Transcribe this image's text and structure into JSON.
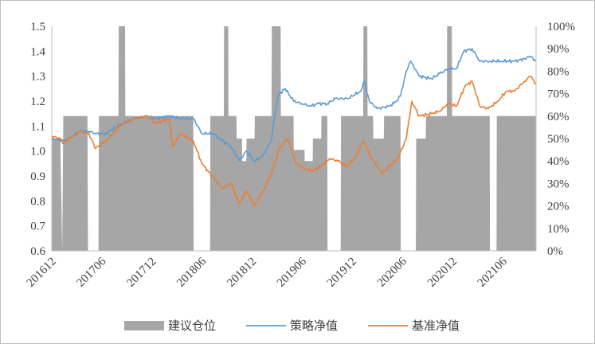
{
  "chart_data": {
    "type": "line",
    "title": "",
    "xlabel": "",
    "ylabel": "",
    "grid": false,
    "legend_position": "bottom",
    "x_tick_labels": [
      "201612",
      "201706",
      "201712",
      "201806",
      "201812",
      "201906",
      "201912",
      "202006",
      "202012",
      "202106"
    ],
    "y_left": {
      "ylim": [
        0.6,
        1.5
      ],
      "ticks": [
        "0.6",
        "0.7",
        "0.8",
        "0.9",
        "1.0",
        "1.1",
        "1.2",
        "1.3",
        "1.4",
        "1.5"
      ]
    },
    "y_right": {
      "ylim": [
        0,
        100
      ],
      "ticks": [
        "0%",
        "10%",
        "20%",
        "30%",
        "40%",
        "50%",
        "60%",
        "70%",
        "80%",
        "90%",
        "100%"
      ]
    },
    "x_range": [
      "2016-12",
      "2021-10"
    ],
    "series": [
      {
        "name": "建议仓位",
        "kind": "area",
        "axis": "right",
        "color": "#a6a6a6",
        "points": [
          [
            "2016-12-01",
            50
          ],
          [
            "2017-01-01",
            50
          ],
          [
            "2017-01-08",
            0
          ],
          [
            "2017-01-12",
            60
          ],
          [
            "2017-04-10",
            60
          ],
          [
            "2017-04-12",
            0
          ],
          [
            "2017-05-20",
            0
          ],
          [
            "2017-05-22",
            60
          ],
          [
            "2017-08-01",
            60
          ],
          [
            "2017-08-02",
            100
          ],
          [
            "2017-08-25",
            100
          ],
          [
            "2017-08-26",
            60
          ],
          [
            "2018-05-01",
            60
          ],
          [
            "2018-05-02",
            0
          ],
          [
            "2018-07-01",
            0
          ],
          [
            "2018-07-02",
            60
          ],
          [
            "2018-08-20",
            60
          ],
          [
            "2018-08-21",
            100
          ],
          [
            "2018-09-05",
            100
          ],
          [
            "2018-09-06",
            60
          ],
          [
            "2018-10-05",
            60
          ],
          [
            "2018-10-06",
            50
          ],
          [
            "2018-10-25",
            50
          ],
          [
            "2018-10-26",
            40
          ],
          [
            "2018-11-10",
            40
          ],
          [
            "2018-11-11",
            50
          ],
          [
            "2018-12-10",
            50
          ],
          [
            "2018-12-11",
            60
          ],
          [
            "2019-02-10",
            60
          ],
          [
            "2019-02-11",
            100
          ],
          [
            "2019-03-15",
            100
          ],
          [
            "2019-03-16",
            60
          ],
          [
            "2019-05-01",
            60
          ],
          [
            "2019-05-02",
            45
          ],
          [
            "2019-06-10",
            45
          ],
          [
            "2019-06-11",
            40
          ],
          [
            "2019-07-10",
            40
          ],
          [
            "2019-07-11",
            50
          ],
          [
            "2019-08-10",
            50
          ],
          [
            "2019-08-11",
            60
          ],
          [
            "2019-09-01",
            60
          ],
          [
            "2019-09-02",
            0
          ],
          [
            "2019-10-20",
            0
          ],
          [
            "2019-10-21",
            60
          ],
          [
            "2020-01-10",
            60
          ],
          [
            "2020-01-11",
            100
          ],
          [
            "2020-01-25",
            100
          ],
          [
            "2020-01-26",
            60
          ],
          [
            "2020-02-15",
            60
          ],
          [
            "2020-02-16",
            50
          ],
          [
            "2020-03-25",
            50
          ],
          [
            "2020-03-26",
            60
          ],
          [
            "2020-05-25",
            60
          ],
          [
            "2020-05-26",
            0
          ],
          [
            "2020-07-20",
            0
          ],
          [
            "2020-07-21",
            50
          ],
          [
            "2020-08-25",
            50
          ],
          [
            "2020-08-26",
            60
          ],
          [
            "2020-11-10",
            60
          ],
          [
            "2020-11-11",
            100
          ],
          [
            "2020-11-28",
            100
          ],
          [
            "2020-11-29",
            60
          ],
          [
            "2021-04-15",
            60
          ],
          [
            "2021-04-16",
            0
          ],
          [
            "2021-05-10",
            0
          ],
          [
            "2021-05-11",
            60
          ],
          [
            "2021-10-01",
            60
          ]
        ]
      },
      {
        "name": "策略净值",
        "kind": "line",
        "axis": "left",
        "color": "#5b9bd5",
        "points": [
          [
            "2016-12-01",
            1.05
          ],
          [
            "2017-01-15",
            1.04
          ],
          [
            "2017-02-15",
            1.06
          ],
          [
            "2017-03-15",
            1.08
          ],
          [
            "2017-04-15",
            1.08
          ],
          [
            "2017-05-10",
            1.07
          ],
          [
            "2017-06-15",
            1.07
          ],
          [
            "2017-08-15",
            1.11
          ],
          [
            "2017-10-01",
            1.13
          ],
          [
            "2017-11-15",
            1.14
          ],
          [
            "2017-12-15",
            1.13
          ],
          [
            "2018-02-01",
            1.14
          ],
          [
            "2018-03-15",
            1.13
          ],
          [
            "2018-05-01",
            1.13
          ],
          [
            "2018-06-01",
            1.07
          ],
          [
            "2018-07-15",
            1.07
          ],
          [
            "2018-08-15",
            1.04
          ],
          [
            "2018-09-15",
            1.02
          ],
          [
            "2018-10-15",
            0.96
          ],
          [
            "2018-11-10",
            1.0
          ],
          [
            "2018-12-10",
            0.96
          ],
          [
            "2019-01-10",
            0.98
          ],
          [
            "2019-02-10",
            1.05
          ],
          [
            "2019-02-25",
            1.17
          ],
          [
            "2019-03-10",
            1.23
          ],
          [
            "2019-04-01",
            1.25
          ],
          [
            "2019-05-01",
            1.2
          ],
          [
            "2019-06-01",
            1.19
          ],
          [
            "2019-07-01",
            1.18
          ],
          [
            "2019-08-01",
            1.19
          ],
          [
            "2019-09-01",
            1.19
          ],
          [
            "2019-10-01",
            1.21
          ],
          [
            "2019-11-15",
            1.21
          ],
          [
            "2020-01-01",
            1.24
          ],
          [
            "2020-01-15",
            1.28
          ],
          [
            "2020-02-01",
            1.2
          ],
          [
            "2020-03-01",
            1.17
          ],
          [
            "2020-04-15",
            1.18
          ],
          [
            "2020-05-10",
            1.2
          ],
          [
            "2020-05-25",
            1.22
          ],
          [
            "2020-06-15",
            1.32
          ],
          [
            "2020-07-01",
            1.36
          ],
          [
            "2020-08-01",
            1.3
          ],
          [
            "2020-09-15",
            1.29
          ],
          [
            "2020-10-15",
            1.31
          ],
          [
            "2020-11-15",
            1.33
          ],
          [
            "2020-12-15",
            1.33
          ],
          [
            "2021-01-10",
            1.4
          ],
          [
            "2021-02-10",
            1.41
          ],
          [
            "2021-03-10",
            1.36
          ],
          [
            "2021-04-15",
            1.36
          ],
          [
            "2021-06-01",
            1.36
          ],
          [
            "2021-07-15",
            1.36
          ],
          [
            "2021-08-20",
            1.37
          ],
          [
            "2021-09-10",
            1.38
          ],
          [
            "2021-10-01",
            1.36
          ]
        ]
      },
      {
        "name": "基准净值",
        "kind": "line",
        "axis": "left",
        "color": "#ed7d31",
        "points": [
          [
            "2016-12-01",
            1.06
          ],
          [
            "2017-01-01",
            1.05
          ],
          [
            "2017-01-10",
            1.03
          ],
          [
            "2017-02-15",
            1.06
          ],
          [
            "2017-03-15",
            1.08
          ],
          [
            "2017-04-15",
            1.07
          ],
          [
            "2017-05-10",
            1.01
          ],
          [
            "2017-06-15",
            1.04
          ],
          [
            "2017-08-15",
            1.11
          ],
          [
            "2017-10-01",
            1.13
          ],
          [
            "2017-11-15",
            1.14
          ],
          [
            "2017-12-15",
            1.11
          ],
          [
            "2018-02-01",
            1.13
          ],
          [
            "2018-02-15",
            1.02
          ],
          [
            "2018-03-15",
            1.07
          ],
          [
            "2018-05-01",
            1.04
          ],
          [
            "2018-06-01",
            0.95
          ],
          [
            "2018-07-15",
            0.89
          ],
          [
            "2018-08-15",
            0.85
          ],
          [
            "2018-09-15",
            0.87
          ],
          [
            "2018-10-15",
            0.79
          ],
          [
            "2018-11-10",
            0.84
          ],
          [
            "2018-12-10",
            0.78
          ],
          [
            "2019-01-10",
            0.84
          ],
          [
            "2019-02-10",
            0.91
          ],
          [
            "2019-03-10",
            1.01
          ],
          [
            "2019-04-10",
            1.05
          ],
          [
            "2019-05-10",
            0.95
          ],
          [
            "2019-06-10",
            0.93
          ],
          [
            "2019-07-10",
            0.92
          ],
          [
            "2019-08-10",
            0.94
          ],
          [
            "2019-09-10",
            0.97
          ],
          [
            "2019-10-10",
            0.96
          ],
          [
            "2019-11-10",
            0.94
          ],
          [
            "2019-12-10",
            0.97
          ],
          [
            "2020-01-10",
            1.04
          ],
          [
            "2020-02-05",
            0.98
          ],
          [
            "2020-03-20",
            0.91
          ],
          [
            "2020-04-15",
            0.94
          ],
          [
            "2020-05-15",
            0.97
          ],
          [
            "2020-06-15",
            1.05
          ],
          [
            "2020-07-05",
            1.2
          ],
          [
            "2020-08-01",
            1.14
          ],
          [
            "2020-09-15",
            1.15
          ],
          [
            "2020-10-15",
            1.16
          ],
          [
            "2020-11-15",
            1.19
          ],
          [
            "2020-12-15",
            1.18
          ],
          [
            "2021-01-15",
            1.26
          ],
          [
            "2021-02-10",
            1.28
          ],
          [
            "2021-03-10",
            1.18
          ],
          [
            "2021-04-10",
            1.17
          ],
          [
            "2021-05-15",
            1.2
          ],
          [
            "2021-06-15",
            1.24
          ],
          [
            "2021-07-15",
            1.24
          ],
          [
            "2021-08-20",
            1.28
          ],
          [
            "2021-09-10",
            1.3
          ],
          [
            "2021-10-01",
            1.27
          ]
        ]
      }
    ]
  }
}
